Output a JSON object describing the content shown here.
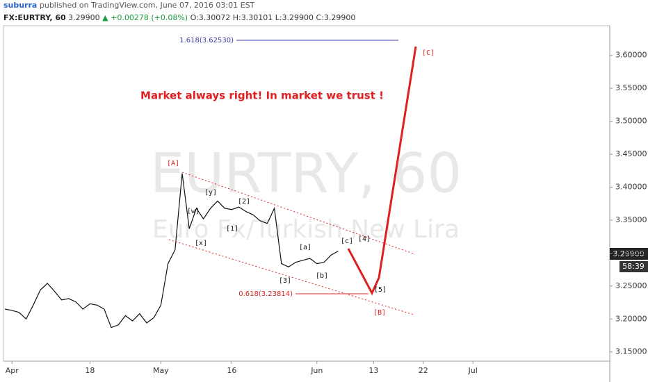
{
  "header": {
    "author": "suburra",
    "published": "published on TradingView.com, June 07, 2016 03:01 EST",
    "symbol": "FX:EURTRY, 60",
    "price": "3.29900",
    "change": "▲ +0.00278 (+0.08%)",
    "ohlc": [
      "O:3.30072",
      "H:3.30101",
      "L:3.29900",
      "C:3.29900"
    ]
  },
  "chart_data": {
    "type": "line",
    "color": "#111111",
    "watermark": "EURTRY, 60",
    "watermark_sub": "Euro Fx/Turkish New Lira",
    "x": [
      -1,
      0,
      1,
      2,
      3,
      4,
      5,
      6,
      7,
      8,
      9,
      10,
      11,
      12,
      13,
      14,
      15,
      16,
      17,
      18,
      19,
      20,
      21,
      22,
      23,
      24,
      25,
      26,
      27,
      28,
      29,
      30,
      31,
      32,
      33,
      34,
      35,
      36,
      37,
      38,
      39,
      40,
      41,
      42,
      43,
      44,
      45,
      46
    ],
    "values": [
      3.215,
      3.213,
      3.21,
      3.2,
      3.221,
      3.244,
      3.254,
      3.242,
      3.229,
      3.231,
      3.226,
      3.215,
      3.223,
      3.221,
      3.215,
      3.187,
      3.191,
      3.205,
      3.197,
      3.208,
      3.194,
      3.202,
      3.221,
      3.284,
      3.305,
      3.421,
      3.337,
      3.368,
      3.352,
      3.368,
      3.379,
      3.368,
      3.366,
      3.37,
      3.363,
      3.358,
      3.349,
      3.345,
      3.368,
      3.284,
      3.279,
      3.286,
      3.289,
      3.292,
      3.284,
      3.286,
      3.297,
      3.303
    ],
    "xlim": [
      -1.2,
      84.3
    ],
    "ylim": [
      3.136,
      3.645
    ],
    "xticks": [
      {
        "value": 0,
        "label": "Apr"
      },
      {
        "value": 11,
        "label": "18"
      },
      {
        "value": 21,
        "label": "May"
      },
      {
        "value": 31,
        "label": "16"
      },
      {
        "value": 43,
        "label": "Jun"
      },
      {
        "value": 51,
        "label": "13"
      },
      {
        "value": 58,
        "label": "22"
      },
      {
        "value": 65,
        "label": "Jul"
      }
    ],
    "yticks": [
      {
        "value": 3.15,
        "label": "3.15000"
      },
      {
        "value": 3.2,
        "label": "3.20000"
      },
      {
        "value": 3.25,
        "label": "3.25000"
      },
      {
        "value": 3.3,
        "label": "3.30000"
      },
      {
        "value": 3.35,
        "label": "3.35000"
      },
      {
        "value": 3.4,
        "label": "3.40000"
      },
      {
        "value": 3.45,
        "label": "3.45000"
      },
      {
        "value": 3.5,
        "label": "3.50000"
      },
      {
        "value": 3.55,
        "label": "3.55000"
      },
      {
        "value": 3.6,
        "label": "3.60000"
      }
    ],
    "price_tag": "3.29900",
    "countdown": "58:39",
    "headline": "Market always right! In market we trust !",
    "fib_upper": "1.618(3.62530)",
    "fib_lower": "0.618(3.23814)",
    "annotations": [
      "[A]",
      "[w]",
      "[x]",
      "[y]",
      "[1]",
      "[2]",
      "[3]",
      "[a]",
      "[b]",
      "[c]",
      "[4]",
      "[5]",
      "[B]",
      "[C]"
    ]
  }
}
